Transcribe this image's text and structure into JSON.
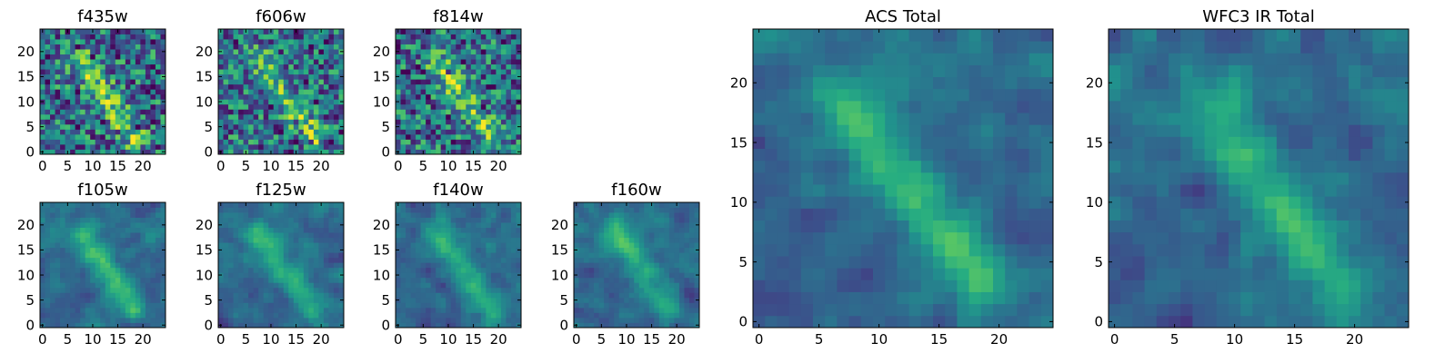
{
  "chart_data": [
    {
      "type": "heatmap",
      "title": "f435w",
      "colormap": "viridis",
      "grid_size": [
        25,
        25
      ],
      "xlim": [
        -0.5,
        24.5
      ],
      "ylim": [
        -0.5,
        24.5
      ],
      "xticks": [
        0,
        5,
        10,
        15,
        20
      ],
      "yticks": [
        0,
        5,
        10,
        15,
        20
      ],
      "xlabel": "",
      "ylabel": "",
      "description_values": "pixel flux map; brighter feature near x≈11, y≈12"
    },
    {
      "type": "heatmap",
      "title": "f606w",
      "colormap": "viridis",
      "grid_size": [
        25,
        25
      ],
      "xlim": [
        -0.5,
        24.5
      ],
      "ylim": [
        -0.5,
        24.5
      ],
      "xticks": [
        0,
        5,
        10,
        15,
        20
      ],
      "yticks": [
        0,
        5,
        10,
        15,
        20
      ],
      "xlabel": "",
      "ylabel": ""
    },
    {
      "type": "heatmap",
      "title": "f814w",
      "colormap": "viridis",
      "grid_size": [
        25,
        25
      ],
      "xlim": [
        -0.5,
        24.5
      ],
      "ylim": [
        -0.5,
        24.5
      ],
      "xticks": [
        0,
        5,
        10,
        15,
        20
      ],
      "yticks": [
        0,
        5,
        10,
        15,
        20
      ],
      "xlabel": "",
      "ylabel": ""
    },
    {
      "type": "heatmap",
      "title": "f105w",
      "colormap": "viridis",
      "grid_size": [
        25,
        25
      ],
      "xlim": [
        -0.5,
        24.5
      ],
      "ylim": [
        -0.5,
        24.5
      ],
      "xticks": [
        0,
        5,
        10,
        15,
        20
      ],
      "yticks": [
        0,
        5,
        10,
        15,
        20
      ],
      "xlabel": "",
      "ylabel": ""
    },
    {
      "type": "heatmap",
      "title": "f125w",
      "colormap": "viridis",
      "grid_size": [
        25,
        25
      ],
      "xlim": [
        -0.5,
        24.5
      ],
      "ylim": [
        -0.5,
        24.5
      ],
      "xticks": [
        0,
        5,
        10,
        15,
        20
      ],
      "yticks": [
        0,
        5,
        10,
        15,
        20
      ],
      "xlabel": "",
      "ylabel": ""
    },
    {
      "type": "heatmap",
      "title": "f140w",
      "colormap": "viridis",
      "grid_size": [
        25,
        25
      ],
      "xlim": [
        -0.5,
        24.5
      ],
      "ylim": [
        -0.5,
        24.5
      ],
      "xticks": [
        0,
        5,
        10,
        15,
        20
      ],
      "yticks": [
        0,
        5,
        10,
        15,
        20
      ],
      "xlabel": "",
      "ylabel": ""
    },
    {
      "type": "heatmap",
      "title": "f160w",
      "colormap": "viridis",
      "grid_size": [
        25,
        25
      ],
      "xlim": [
        -0.5,
        24.5
      ],
      "ylim": [
        -0.5,
        24.5
      ],
      "xticks": [
        0,
        5,
        10,
        15,
        20
      ],
      "yticks": [
        0,
        5,
        10,
        15,
        20
      ],
      "xlabel": "",
      "ylabel": ""
    },
    {
      "type": "heatmap",
      "title": "ACS Total",
      "colormap": "viridis",
      "grid_size": [
        25,
        25
      ],
      "xlim": [
        -0.5,
        24.5
      ],
      "ylim": [
        -0.5,
        24.5
      ],
      "xticks": [
        0,
        5,
        10,
        15,
        20
      ],
      "yticks": [
        0,
        5,
        10,
        15,
        20
      ],
      "xlabel": "",
      "ylabel": ""
    },
    {
      "type": "heatmap",
      "title": "WFC3 IR Total",
      "colormap": "viridis",
      "grid_size": [
        25,
        25
      ],
      "xlim": [
        -0.5,
        24.5
      ],
      "ylim": [
        -0.5,
        24.5
      ],
      "xticks": [
        0,
        5,
        10,
        15,
        20
      ],
      "yticks": [
        0,
        5,
        10,
        15,
        20
      ],
      "xlabel": "",
      "ylabel": ""
    }
  ]
}
